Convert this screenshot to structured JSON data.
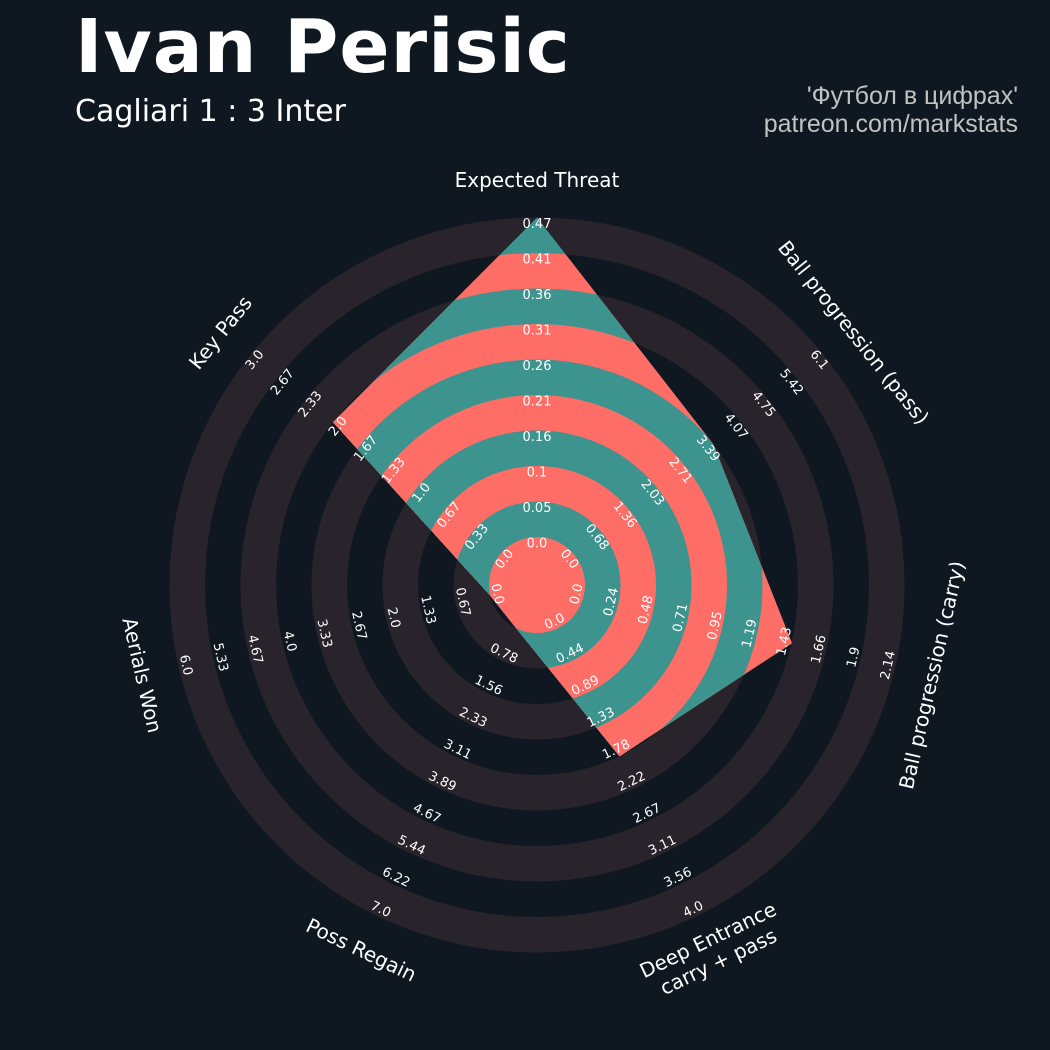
{
  "header": {
    "title": "Ivan Perisic",
    "subtitle": "Cagliari 1 : 3 Inter",
    "credit_line1": "'Футбол в цифрах'",
    "credit_line2": "patreon.com/markstats"
  },
  "colors": {
    "background": "#0f1821",
    "ring_band": "#29242b",
    "fill_a": "#3d938d",
    "fill_b": "#ff6d67",
    "text": "#ffffff",
    "credit": "#c2c2c2"
  },
  "chart_data": {
    "type": "radar",
    "params": [
      {
        "name": "Expected Threat",
        "ticks": [
          "0.0",
          "0.05",
          "0.1",
          "0.16",
          "0.21",
          "0.26",
          "0.31",
          "0.36",
          "0.41",
          "0.47"
        ],
        "value": 0.47
      },
      {
        "name": "Ball progression (pass)",
        "ticks": [
          "0.0",
          "0.68",
          "1.36",
          "2.03",
          "2.71",
          "3.39",
          "4.07",
          "4.75",
          "5.42",
          "6.1"
        ],
        "value": 3.39
      },
      {
        "name": "Ball progression (carry)",
        "ticks": [
          "0.0",
          "0.24",
          "0.48",
          "0.71",
          "0.95",
          "1.19",
          "1.43",
          "1.66",
          "1.9",
          "2.14"
        ],
        "value": 1.43
      },
      {
        "name": "Deep Entrance\ncarry + pass",
        "ticks": [
          "0.0",
          "0.44",
          "0.89",
          "1.33",
          "1.78",
          "2.22",
          "2.67",
          "3.11",
          "3.56",
          "4.0"
        ],
        "value": 1.78
      },
      {
        "name": "Poss Regain",
        "ticks": [
          "0.78",
          "1.56",
          "2.33",
          "3.11",
          "3.89",
          "4.67",
          "5.44",
          "6.22",
          "7.0"
        ],
        "value": 0.0
      },
      {
        "name": "Aerials Won",
        "ticks": [
          "0.0",
          "0.67",
          "1.33",
          "2.0",
          "2.67",
          "3.33",
          "4.0",
          "4.67",
          "5.33",
          "6.0"
        ],
        "value": 0.0
      },
      {
        "name": "Key Pass",
        "ticks": [
          "0.0",
          "0.33",
          "0.67",
          "1.0",
          "1.33",
          "1.67",
          "2.0",
          "2.33",
          "2.67",
          "3.0"
        ],
        "value": 2.0
      }
    ]
  }
}
